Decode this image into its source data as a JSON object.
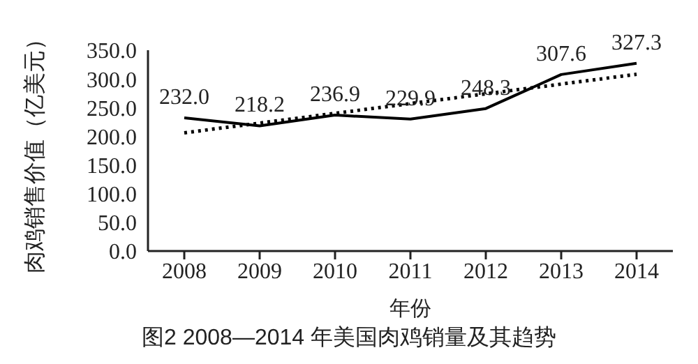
{
  "chart_data": {
    "type": "line",
    "title": "图2 2008—2014 年美国肉鸡销量及其趋势",
    "xlabel": "年份",
    "ylabel": "肉鸡销售价值（亿美元）",
    "categories": [
      "2008",
      "2009",
      "2010",
      "2011",
      "2012",
      "2013",
      "2014"
    ],
    "series": [
      {
        "color": "#000000",
        "values": [
          232.0,
          218.2,
          236.9,
          229.9,
          248.3,
          307.6,
          327.3
        ],
        "value_labels": [
          "232.0",
          "218.2",
          "236.9",
          "229.9",
          "248.3",
          "307.6",
          "327.3"
        ],
        "line_style": "solid"
      },
      {
        "type": "line",
        "values": [
          206,
          223,
          240,
          257,
          274,
          291,
          308
        ],
        "color": "#000000",
        "line_style": "dotted"
      }
    ],
    "ylim": [
      0,
      350
    ],
    "yticks": [
      {
        "value": 0,
        "label": "0.0"
      },
      {
        "value": 50,
        "label": "50.0"
      },
      {
        "value": 100,
        "label": "100.0"
      },
      {
        "value": 150,
        "label": "150.0"
      },
      {
        "value": 200,
        "label": "200.0"
      },
      {
        "value": 250,
        "label": "250.0"
      },
      {
        "value": 300,
        "label": "300.0"
      },
      {
        "value": 350,
        "label": "350.0"
      }
    ],
    "grid": false,
    "legend": false,
    "marker": "none"
  }
}
